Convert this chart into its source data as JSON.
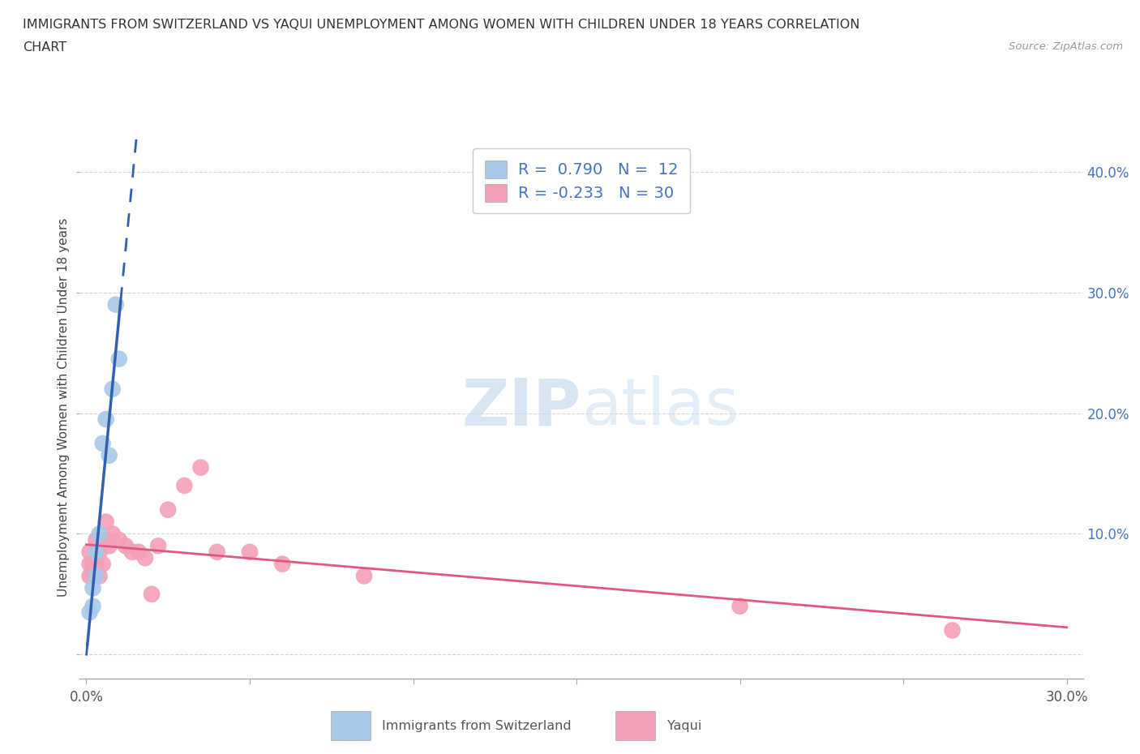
{
  "title_line1": "IMMIGRANTS FROM SWITZERLAND VS YAQUI UNEMPLOYMENT AMONG WOMEN WITH CHILDREN UNDER 18 YEARS CORRELATION",
  "title_line2": "CHART",
  "source": "Source: ZipAtlas.com",
  "ylabel": "Unemployment Among Women with Children Under 18 years",
  "xlim": [
    -0.002,
    0.305
  ],
  "ylim": [
    -0.02,
    0.43
  ],
  "xticks": [
    0.0,
    0.05,
    0.1,
    0.15,
    0.2,
    0.25,
    0.3
  ],
  "xtick_labels_show": [
    "0.0%",
    "",
    "",
    "",
    "",
    "",
    "30.0%"
  ],
  "yticks": [
    0.0,
    0.1,
    0.2,
    0.3,
    0.4
  ],
  "ytick_right_labels": [
    "",
    "10.0%",
    "20.0%",
    "30.0%",
    "40.0%"
  ],
  "legend_label1": "R =  0.790   N =  12",
  "legend_label2": "R = -0.233   N = 30",
  "watermark_zip": "ZIP",
  "watermark_atlas": "atlas",
  "blue_scatter_color": "#a8c8e8",
  "pink_scatter_color": "#f4a0b8",
  "blue_line_color": "#3060b0",
  "pink_line_color": "#e05880",
  "legend_blue_color": "#a8c8e8",
  "legend_pink_color": "#f4a0b8",
  "swiss_x": [
    0.001,
    0.002,
    0.002,
    0.003,
    0.003,
    0.004,
    0.005,
    0.006,
    0.007,
    0.008,
    0.009,
    0.01
  ],
  "swiss_y": [
    0.035,
    0.04,
    0.055,
    0.065,
    0.085,
    0.1,
    0.175,
    0.195,
    0.165,
    0.22,
    0.29,
    0.245
  ],
  "yaqui_x": [
    0.001,
    0.001,
    0.001,
    0.002,
    0.002,
    0.003,
    0.003,
    0.004,
    0.004,
    0.005,
    0.006,
    0.006,
    0.007,
    0.008,
    0.01,
    0.012,
    0.014,
    0.016,
    0.018,
    0.02,
    0.022,
    0.025,
    0.03,
    0.035,
    0.04,
    0.05,
    0.06,
    0.085,
    0.2,
    0.265
  ],
  "yaqui_y": [
    0.065,
    0.075,
    0.085,
    0.065,
    0.075,
    0.075,
    0.095,
    0.065,
    0.085,
    0.075,
    0.095,
    0.11,
    0.09,
    0.1,
    0.095,
    0.09,
    0.085,
    0.085,
    0.08,
    0.05,
    0.09,
    0.12,
    0.14,
    0.155,
    0.085,
    0.085,
    0.075,
    0.065,
    0.04,
    0.02
  ],
  "background_color": "#ffffff",
  "grid_color": "#cccccc",
  "axis_color": "#cccccc"
}
